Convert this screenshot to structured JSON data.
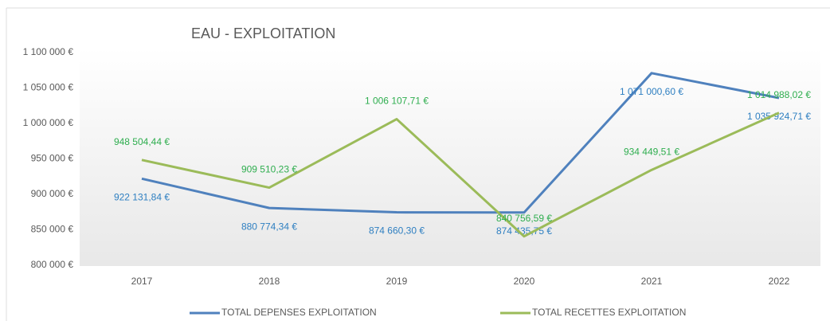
{
  "chart_data": {
    "type": "line",
    "title": "EAU - EXPLOITATION",
    "categories": [
      "2017",
      "2018",
      "2019",
      "2020",
      "2021",
      "2022"
    ],
    "series": [
      {
        "name": "TOTAL DEPENSES EXPLOITATION",
        "color": "#4f81bd",
        "values": [
          922131.84,
          880774.34,
          874660.3,
          874435.75,
          1071000.6,
          1035924.71
        ],
        "value_labels": [
          "922 131,84 €",
          "880 774,34 €",
          "874 660,30 €",
          "874 435,75 €",
          "1 071 000,60 €",
          "1 035 924,71 €"
        ],
        "label_color": "#2e7fc1"
      },
      {
        "name": "TOTAL RECETTES EXPLOITATION",
        "color": "#9bbb59",
        "values": [
          948504.44,
          909510.23,
          1006107.71,
          840756.59,
          934449.51,
          1014988.02
        ],
        "value_labels": [
          "948 504,44 €",
          "909 510,23 €",
          "1 006 107,71 €",
          "840 756,59 €",
          "934 449,51 €",
          "1 014 988,02 €"
        ],
        "label_color": "#2fae4f"
      }
    ],
    "ylim": [
      800000,
      1100000
    ],
    "yticks": [
      {
        "value": 800000,
        "label": "800 000 €"
      },
      {
        "value": 850000,
        "label": "850 000 €"
      },
      {
        "value": 900000,
        "label": "900 000 €"
      },
      {
        "value": 950000,
        "label": "950 000 €"
      },
      {
        "value": 1000000,
        "label": "1 000 000 €"
      },
      {
        "value": 1050000,
        "label": "1 050 000 €"
      },
      {
        "value": 1100000,
        "label": "1 100 000 €"
      }
    ],
    "grid": false,
    "legend": "bottom"
  }
}
